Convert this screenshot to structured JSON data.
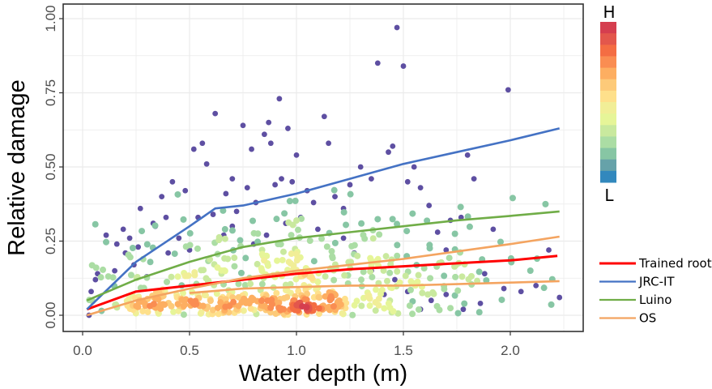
{
  "chart_data": {
    "type": "scatter",
    "title": "",
    "xlabel": "Water depth (m)",
    "ylabel": "Relative damage",
    "xlim": [
      -0.06,
      2.34
    ],
    "ylim": [
      -0.05,
      1.04
    ],
    "x_ticks": [
      0.0,
      0.5,
      1.0,
      1.5,
      2.0
    ],
    "x_tick_labels": [
      "0.0",
      "0.5",
      "1.0",
      "1.5",
      "2.0"
    ],
    "y_ticks": [
      0.0,
      0.25,
      0.5,
      0.75,
      1.0
    ],
    "y_tick_labels": [
      "0.00",
      "0.25",
      "0.50",
      "0.75",
      "1.00"
    ],
    "grid": true,
    "colorbar": {
      "high_label": "H",
      "low_label": "L",
      "meaning": "point density",
      "colors": [
        "#d53e4f",
        "#e3574c",
        "#f46d43",
        "#fa8d52",
        "#fdae61",
        "#fdca79",
        "#fee08b",
        "#f1ee97",
        "#e6f598",
        "#c9e99e",
        "#abdda4",
        "#87c6a4",
        "#66a2a9",
        "#3288bd"
      ]
    },
    "low_density_color": "#5e4fa2",
    "outlier_points": [
      [
        0.03,
        0.0
      ],
      [
        0.04,
        0.08
      ],
      [
        0.06,
        0.12
      ],
      [
        0.07,
        0.14
      ],
      [
        0.11,
        0.27
      ],
      [
        0.16,
        0.24
      ],
      [
        0.19,
        0.29
      ],
      [
        0.22,
        0.26
      ],
      [
        0.2,
        0.21
      ],
      [
        0.27,
        0.36
      ],
      [
        0.3,
        0.13
      ],
      [
        0.34,
        0.3
      ],
      [
        0.37,
        0.4
      ],
      [
        0.4,
        0.21
      ],
      [
        0.42,
        0.45
      ],
      [
        0.48,
        0.42
      ],
      [
        0.52,
        0.56
      ],
      [
        0.56,
        0.58
      ],
      [
        0.58,
        0.51
      ],
      [
        0.61,
        0.34
      ],
      [
        0.62,
        0.68
      ],
      [
        0.67,
        0.41
      ],
      [
        0.7,
        0.46
      ],
      [
        0.72,
        0.35
      ],
      [
        0.75,
        0.64
      ],
      [
        0.77,
        0.43
      ],
      [
        0.79,
        0.56
      ],
      [
        0.81,
        0.38
      ],
      [
        0.85,
        0.61
      ],
      [
        0.87,
        0.65
      ],
      [
        0.88,
        0.58
      ],
      [
        0.9,
        0.44
      ],
      [
        0.92,
        0.73
      ],
      [
        0.93,
        0.46
      ],
      [
        0.96,
        0.63
      ],
      [
        0.98,
        0.45
      ],
      [
        1.0,
        0.54
      ],
      [
        1.05,
        0.42
      ],
      [
        1.08,
        0.38
      ],
      [
        1.13,
        0.67
      ],
      [
        1.15,
        0.58
      ],
      [
        1.18,
        0.4
      ],
      [
        1.22,
        0.36
      ],
      [
        1.25,
        0.44
      ],
      [
        1.3,
        0.5
      ],
      [
        1.35,
        0.46
      ],
      [
        1.38,
        0.85
      ],
      [
        1.43,
        0.55
      ],
      [
        1.45,
        0.57
      ],
      [
        1.47,
        0.97
      ],
      [
        1.5,
        0.84
      ],
      [
        1.52,
        0.45
      ],
      [
        1.55,
        0.5
      ],
      [
        1.58,
        0.43
      ],
      [
        1.62,
        0.37
      ],
      [
        1.66,
        0.28
      ],
      [
        1.7,
        0.22
      ],
      [
        1.72,
        0.32
      ],
      [
        1.77,
        0.33
      ],
      [
        1.8,
        0.54
      ],
      [
        1.83,
        0.46
      ],
      [
        1.88,
        0.14
      ],
      [
        1.92,
        0.29
      ],
      [
        1.99,
        0.76
      ],
      [
        2.05,
        0.08
      ],
      [
        2.12,
        0.1
      ],
      [
        2.18,
        0.22
      ],
      [
        2.23,
        0.06
      ],
      [
        1.97,
        0.09
      ],
      [
        1.86,
        0.04
      ],
      [
        1.78,
        0.02
      ],
      [
        1.7,
        0.07
      ],
      [
        1.63,
        0.05
      ],
      [
        1.58,
        0.02
      ],
      [
        1.52,
        0.08
      ],
      [
        1.46,
        0.12
      ],
      [
        1.41,
        0.07
      ],
      [
        1.35,
        0.15
      ],
      [
        1.27,
        0.21
      ],
      [
        1.22,
        0.26
      ],
      [
        1.1,
        0.29
      ],
      [
        1.02,
        0.33
      ],
      [
        0.95,
        0.31
      ],
      [
        0.86,
        0.27
      ],
      [
        0.8,
        0.24
      ],
      [
        0.7,
        0.3
      ],
      [
        0.66,
        0.27
      ],
      [
        0.54,
        0.33
      ],
      [
        0.5,
        0.22
      ],
      [
        0.45,
        0.26
      ],
      [
        0.39,
        0.33
      ],
      [
        0.33,
        0.31
      ],
      [
        0.26,
        0.23
      ],
      [
        0.24,
        0.17
      ],
      [
        0.15,
        0.15
      ]
    ],
    "dense_clusters": [
      {
        "center_x": 0.4,
        "center_y": 0.04,
        "spread_x": 0.14,
        "spread_y": 0.025,
        "count": 90
      },
      {
        "center_x": 0.95,
        "center_y": 0.04,
        "spread_x": 0.2,
        "spread_y": 0.025,
        "count": 140
      },
      {
        "center_x": 0.9,
        "center_y": 0.13,
        "spread_x": 0.45,
        "spread_y": 0.07,
        "count": 180
      },
      {
        "center_x": 1.1,
        "center_y": 0.25,
        "spread_x": 0.5,
        "spread_y": 0.07,
        "count": 90
      },
      {
        "center_x": 1.6,
        "center_y": 0.1,
        "spread_x": 0.25,
        "spread_y": 0.06,
        "count": 60
      }
    ],
    "series": [
      {
        "name": "Trained root",
        "color": "#ff0000",
        "x": [
          0.02,
          0.25,
          0.5,
          0.75,
          1.0,
          1.25,
          1.5,
          1.75,
          2.0,
          2.22
        ],
        "y": [
          0.02,
          0.08,
          0.1,
          0.12,
          0.14,
          0.155,
          0.165,
          0.175,
          0.185,
          0.2
        ]
      },
      {
        "name": "JRC-IT",
        "color": "#4472c4",
        "x": [
          0.02,
          0.25,
          0.5,
          0.62,
          0.75,
          1.0,
          1.25,
          1.5,
          1.75,
          2.0,
          2.23
        ],
        "y": [
          0.02,
          0.18,
          0.3,
          0.36,
          0.37,
          0.41,
          0.46,
          0.51,
          0.55,
          0.59,
          0.63
        ]
      },
      {
        "name": "Luino",
        "color": "#70ad47",
        "x": [
          0.02,
          0.25,
          0.5,
          0.75,
          1.0,
          1.25,
          1.5,
          1.75,
          2.0,
          2.23
        ],
        "y": [
          0.05,
          0.12,
          0.18,
          0.23,
          0.26,
          0.28,
          0.3,
          0.32,
          0.335,
          0.35
        ]
      },
      {
        "name": "OS",
        "color": "#f4a460",
        "x": [
          0.02,
          0.25,
          0.5,
          0.75,
          1.0,
          1.25,
          1.5,
          1.75,
          2.0,
          2.23
        ],
        "y": [
          0.0,
          0.05,
          0.09,
          0.125,
          0.15,
          0.17,
          0.19,
          0.215,
          0.24,
          0.265
        ]
      },
      {
        "name": "OS",
        "color": "#f4a460",
        "legend": false,
        "x": [
          0.5,
          0.75,
          1.0,
          1.25,
          1.5,
          1.75,
          2.0,
          2.23
        ],
        "y": [
          0.075,
          0.09,
          0.095,
          0.1,
          0.1,
          0.105,
          0.11,
          0.115
        ]
      }
    ],
    "legend": {
      "placement": "right",
      "entries": [
        {
          "label": "Trained root",
          "color": "#ff0000"
        },
        {
          "label": "JRC-IT",
          "color": "#4472c4"
        },
        {
          "label": "Luino",
          "color": "#70ad47"
        },
        {
          "label": "OS",
          "color": "#f4a460"
        }
      ]
    }
  }
}
